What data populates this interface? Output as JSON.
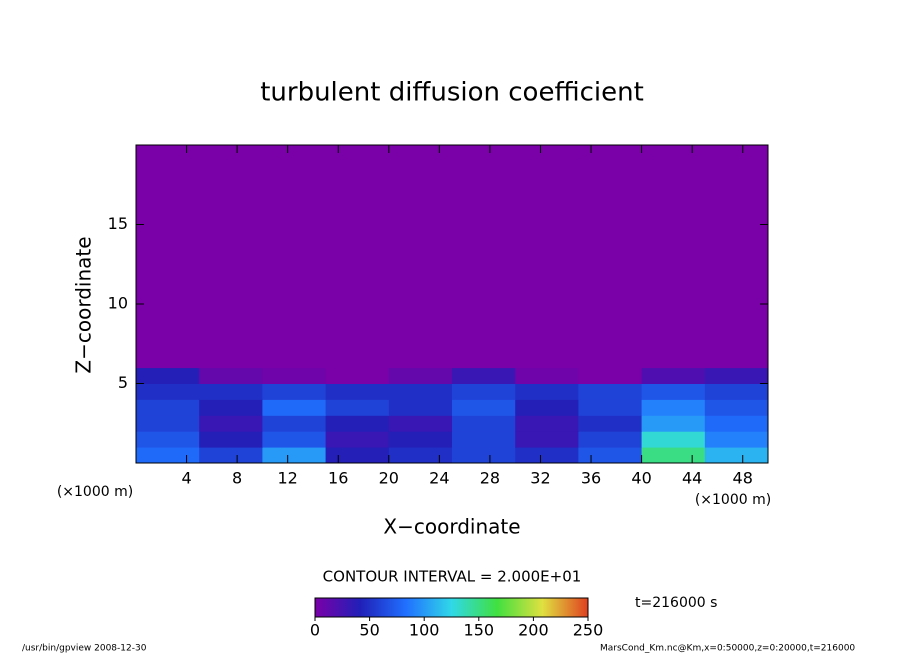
{
  "chart_data": {
    "type": "contour",
    "title": "turbulent diffusion coefficient",
    "xlabel": "X−coordinate",
    "ylabel": "Z−coordinate",
    "xunit": "(×1000 m)",
    "yunit": "(×1000 m)",
    "xlim": [
      0,
      50
    ],
    "ylim": [
      0,
      20
    ],
    "xticks": [
      4,
      8,
      12,
      16,
      20,
      24,
      28,
      32,
      36,
      40,
      44,
      48
    ],
    "yticks": [
      5,
      10,
      15
    ],
    "x_edges": [
      0,
      5,
      10,
      15,
      20,
      25,
      30,
      35,
      40,
      45,
      50
    ],
    "z_edges": [
      0,
      1,
      2,
      3,
      4,
      5,
      6,
      20
    ],
    "values": [
      [
        80,
        60,
        100,
        40,
        50,
        60,
        50,
        70,
        150,
        110
      ],
      [
        70,
        40,
        70,
        30,
        40,
        60,
        30,
        60,
        130,
        90
      ],
      [
        60,
        30,
        60,
        40,
        30,
        60,
        30,
        50,
        100,
        80
      ],
      [
        60,
        40,
        80,
        60,
        50,
        70,
        40,
        60,
        90,
        70
      ],
      [
        50,
        50,
        60,
        50,
        50,
        60,
        50,
        60,
        70,
        60
      ],
      [
        40,
        10,
        5,
        0,
        10,
        30,
        5,
        0,
        20,
        30
      ],
      [
        0,
        0,
        0,
        0,
        0,
        0,
        0,
        0,
        0,
        0
      ]
    ],
    "colormap": [
      "#7a00a8",
      "#2020b8",
      "#2070ff",
      "#30d8e8",
      "#40e040",
      "#e0e040",
      "#e04020"
    ],
    "clim": [
      0,
      250
    ],
    "cticks": [
      0,
      50,
      100,
      150,
      200,
      250
    ],
    "contour_interval": "CONTOUR INTERVAL = 2.000E+01",
    "time": "t=216000 s",
    "footer_left": "/usr/bin/gpview  2008-12-30",
    "footer_right": "MarsCond_Km.nc@Km,x=0:50000,z=0:20000,t=216000"
  }
}
